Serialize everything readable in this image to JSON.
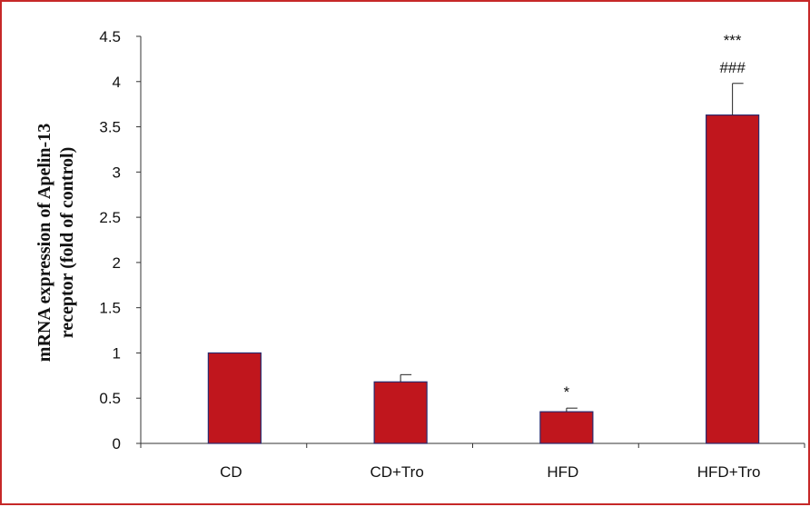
{
  "chart_data": {
    "type": "bar",
    "categories": [
      "CD",
      "CD+Tro",
      "HFD",
      "HFD+Tro"
    ],
    "values": [
      1.0,
      0.68,
      0.35,
      3.63
    ],
    "errors": [
      0.0,
      0.08,
      0.04,
      0.35
    ],
    "ylabel_line1": "mRNA expression of Apelin-13",
    "ylabel_line2": "receptor (fold of control)",
    "ylim": [
      0,
      4.5
    ],
    "yticks": [
      "0",
      "0.5",
      "1",
      "1.5",
      "2",
      "2.5",
      "3",
      "3.5",
      "4",
      "4.5"
    ],
    "ytick_values": [
      0,
      0.5,
      1,
      1.5,
      2,
      2.5,
      3,
      3.5,
      4,
      4.5
    ],
    "annotations": [
      {
        "category": "HFD",
        "lines": [
          "*"
        ]
      },
      {
        "category": "HFD+Tro",
        "lines": [
          "***",
          "###"
        ]
      }
    ],
    "bar_color": "#c0161d",
    "bar_edge_color": "#2a2a6e",
    "grid": false,
    "legend": "none"
  }
}
